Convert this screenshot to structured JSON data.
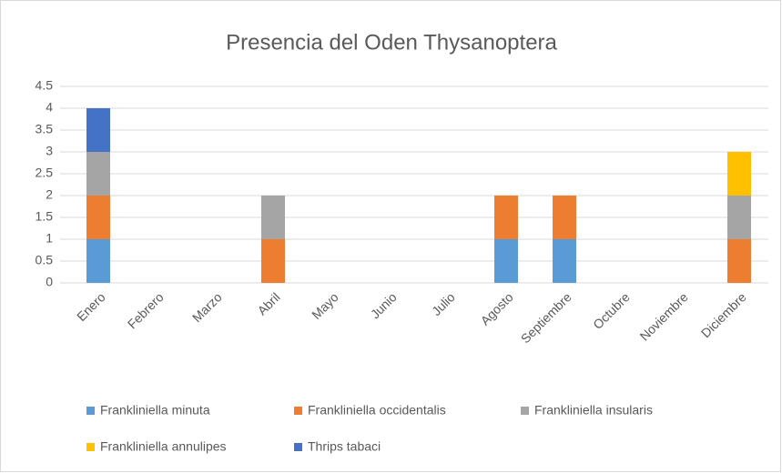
{
  "chart_data": {
    "type": "stacked_bar",
    "title": "Presencia del Oden Thysanoptera",
    "categories": [
      "Enero",
      "Febrero",
      "Marzo",
      "Abril",
      "Mayo",
      "Junio",
      "Julio",
      "Agosto",
      "Septiembre",
      "Octubre",
      "Noviembre",
      "Diciembre"
    ],
    "series": [
      {
        "name": "Frankliniella minuta",
        "color": "#5b9bd5",
        "values": [
          1,
          0,
          0,
          0,
          0,
          0,
          0,
          1,
          1,
          0,
          0,
          0
        ]
      },
      {
        "name": "Frankliniella occidentalis",
        "color": "#ed7d31",
        "values": [
          1,
          0,
          0,
          1,
          0,
          0,
          0,
          1,
          1,
          0,
          0,
          1
        ]
      },
      {
        "name": "Frankliniella insularis",
        "color": "#a5a5a5",
        "values": [
          1,
          0,
          0,
          1,
          0,
          0,
          0,
          0,
          0,
          0,
          0,
          1
        ]
      },
      {
        "name": "Frankliniella annulipes",
        "color": "#ffc000",
        "values": [
          0,
          0,
          0,
          0,
          0,
          0,
          0,
          0,
          0,
          0,
          0,
          1
        ]
      },
      {
        "name": "Thrips tabaci",
        "color": "#4472c4",
        "values": [
          1,
          0,
          0,
          0,
          0,
          0,
          0,
          0,
          0,
          0,
          0,
          0
        ]
      }
    ],
    "ylim": [
      0,
      4.5
    ],
    "yticks": [
      0,
      0.5,
      1,
      1.5,
      2,
      2.5,
      3,
      3.5,
      4,
      4.5
    ],
    "grid": true,
    "legend": "bottom"
  }
}
